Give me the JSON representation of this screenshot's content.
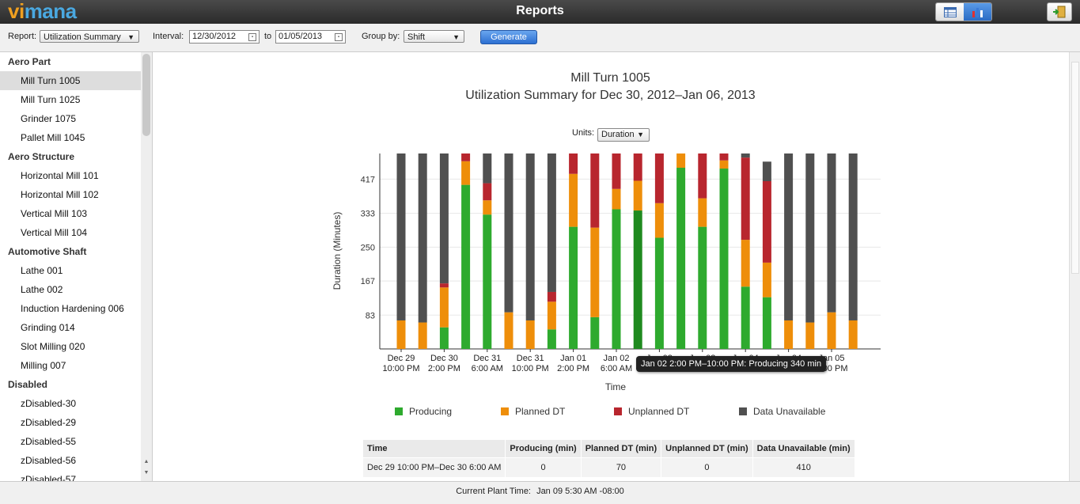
{
  "app": {
    "logo_part1": "vi",
    "logo_part2": "mana",
    "title": "Reports",
    "accent_color": "#2c6fd1"
  },
  "toolbar": {
    "report_label": "Report:",
    "report_value": "Utilization Summary",
    "interval_label": "Interval:",
    "interval_from": "12/30/2012",
    "to_label": "to",
    "interval_to": "01/05/2013",
    "groupby_label": "Group by:",
    "groupby_value": "Shift",
    "generate_label": "Generate"
  },
  "sidebar": [
    {
      "group": "Aero Part",
      "items": [
        {
          "label": "Mill Turn 1005",
          "selected": true
        },
        {
          "label": "Mill Turn 1025"
        },
        {
          "label": "Grinder 1075"
        },
        {
          "label": "Pallet Mill 1045"
        }
      ]
    },
    {
      "group": "Aero Structure",
      "items": [
        {
          "label": "Horizontal Mill 101"
        },
        {
          "label": "Horizontal Mill 102"
        },
        {
          "label": "Vertical Mill 103"
        },
        {
          "label": "Vertical Mill 104"
        }
      ]
    },
    {
      "group": "Automotive Shaft",
      "items": [
        {
          "label": "Lathe 001"
        },
        {
          "label": "Lathe 002"
        },
        {
          "label": "Induction Hardening 006"
        },
        {
          "label": "Grinding 014"
        },
        {
          "label": "Slot Milling 020"
        },
        {
          "label": "Milling 007"
        }
      ]
    },
    {
      "group": "Disabled",
      "items": [
        {
          "label": "zDisabled-30"
        },
        {
          "label": "zDisabled-29"
        },
        {
          "label": "zDisabled-55"
        },
        {
          "label": "zDisabled-56"
        },
        {
          "label": "zDisabled-57"
        }
      ]
    }
  ],
  "report": {
    "title": "Mill Turn 1005",
    "subtitle": "Utilization Summary for Dec 30, 2012–Jan 06, 2013",
    "units_label": "Units:",
    "units_value": "Duration"
  },
  "chart_data": {
    "type": "bar",
    "stacked": true,
    "xlabel": "Time",
    "ylabel": "Duration (Minutes)",
    "yticks": [
      83,
      167,
      250,
      333,
      417
    ],
    "ylim": [
      0,
      480
    ],
    "grid": true,
    "xtick_labels": [
      {
        "line1": "Dec 29",
        "line2": "10:00 PM",
        "bar": 0
      },
      {
        "line1": "Dec 30",
        "line2": "2:00 PM",
        "bar": 2
      },
      {
        "line1": "Dec 31",
        "line2": "6:00 AM",
        "bar": 4
      },
      {
        "line1": "Dec 31",
        "line2": "10:00 PM",
        "bar": 6
      },
      {
        "line1": "Jan 01",
        "line2": "2:00 PM",
        "bar": 8
      },
      {
        "line1": "Jan 02",
        "line2": "6:00 AM",
        "bar": 10
      },
      {
        "line1": "Jan 02",
        "line2": "10:00 PM",
        "bar": 12
      },
      {
        "line1": "Jan 03",
        "line2": "2:00 PM",
        "bar": 14
      },
      {
        "line1": "Jan 04",
        "line2": "6:00 AM",
        "bar": 16
      },
      {
        "line1": "Jan 04",
        "line2": "10:00 PM",
        "bar": 18
      },
      {
        "line1": "Jan 05",
        "line2": "2:00 PM",
        "bar": 20
      }
    ],
    "series": [
      {
        "name": "Producing",
        "color": "#2eaa2e",
        "values": [
          0,
          0,
          53,
          403,
          330,
          0,
          0,
          48,
          300,
          78,
          343,
          340,
          273,
          445,
          300,
          443,
          153,
          127,
          0,
          0,
          0,
          0
        ]
      },
      {
        "name": "Planned DT",
        "color": "#ee8e0a",
        "values": [
          70,
          65,
          98,
          58,
          35,
          90,
          70,
          68,
          130,
          220,
          50,
          73,
          85,
          35,
          70,
          20,
          115,
          85,
          70,
          65,
          90,
          70
        ]
      },
      {
        "name": "Unplanned DT",
        "color": "#b8262e",
        "values": [
          0,
          0,
          10,
          19,
          42,
          0,
          0,
          24,
          50,
          182,
          87,
          67,
          122,
          0,
          110,
          17,
          202,
          200,
          0,
          0,
          0,
          0
        ]
      },
      {
        "name": "Data Unavailable",
        "color": "#505050",
        "values": [
          410,
          415,
          319,
          0,
          73,
          390,
          410,
          340,
          0,
          0,
          0,
          0,
          0,
          0,
          0,
          0,
          10,
          48,
          410,
          415,
          390,
          410
        ]
      }
    ],
    "highlighted_bar": 11,
    "highlight_color": "#1f8a1f"
  },
  "tooltip": {
    "text": "Jan 02 2:00 PM–10:00 PM: Producing 340 min"
  },
  "table": {
    "headers": [
      "Time",
      "Producing (min)",
      "Planned DT (min)",
      "Unplanned DT (min)",
      "Data Unavailable (min)"
    ],
    "rows": [
      [
        "Dec 29 10:00 PM–Dec 30 6:00 AM",
        "0",
        "70",
        "0",
        "410"
      ]
    ]
  },
  "status": {
    "label": "Current Plant Time:",
    "value": "Jan 09 5:30 AM -08:00"
  }
}
